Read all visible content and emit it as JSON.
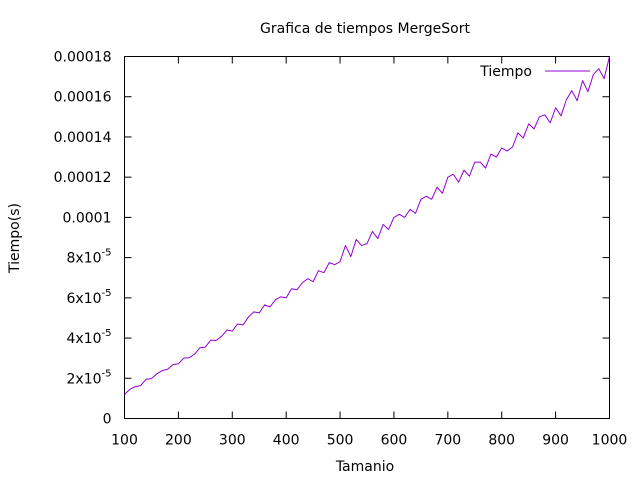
{
  "chart_data": {
    "type": "line",
    "title": "Grafica de tiempos MergeSort",
    "xlabel": "Tamanio",
    "ylabel": "Tiempo(s)",
    "xlim": [
      100,
      1000
    ],
    "ylim": [
      0,
      0.00018
    ],
    "grid": false,
    "legend_position": "top-right",
    "x_ticks": [
      {
        "value": 100,
        "label": "100"
      },
      {
        "value": 200,
        "label": "200"
      },
      {
        "value": 300,
        "label": "300"
      },
      {
        "value": 400,
        "label": "400"
      },
      {
        "value": 500,
        "label": "500"
      },
      {
        "value": 600,
        "label": "600"
      },
      {
        "value": 700,
        "label": "700"
      },
      {
        "value": 800,
        "label": "800"
      },
      {
        "value": 900,
        "label": "900"
      },
      {
        "value": 1000,
        "label": "1000"
      }
    ],
    "y_ticks": [
      {
        "value": 0,
        "label": "0"
      },
      {
        "value": 2e-05,
        "label": "2x10",
        "exp": "-5"
      },
      {
        "value": 4e-05,
        "label": "4x10",
        "exp": "-5"
      },
      {
        "value": 6e-05,
        "label": "6x10",
        "exp": "-5"
      },
      {
        "value": 8e-05,
        "label": "8x10",
        "exp": "-5"
      },
      {
        "value": 0.0001,
        "label": "0.0001"
      },
      {
        "value": 0.00012,
        "label": "0.00012"
      },
      {
        "value": 0.00014,
        "label": "0.00014"
      },
      {
        "value": 0.00016,
        "label": "0.00016"
      },
      {
        "value": 0.00018,
        "label": "0.00018"
      }
    ],
    "series": [
      {
        "name": "Tiempo",
        "color": "#9400d3",
        "x": [
          100,
          110,
          120,
          130,
          140,
          150,
          160,
          170,
          180,
          190,
          200,
          210,
          220,
          230,
          240,
          250,
          260,
          270,
          280,
          290,
          300,
          310,
          320,
          330,
          340,
          350,
          360,
          370,
          380,
          390,
          400,
          410,
          420,
          430,
          440,
          450,
          460,
          470,
          480,
          490,
          500,
          510,
          520,
          530,
          540,
          550,
          560,
          570,
          580,
          590,
          600,
          610,
          620,
          630,
          640,
          650,
          660,
          670,
          680,
          690,
          700,
          710,
          720,
          730,
          740,
          750,
          760,
          770,
          780,
          790,
          800,
          810,
          820,
          830,
          840,
          850,
          860,
          870,
          880,
          890,
          900,
          910,
          920,
          930,
          940,
          950,
          960,
          970,
          980,
          990,
          1000
        ],
        "y": [
          1.2e-05,
          1.45e-05,
          1.58e-05,
          1.64e-05,
          1.95e-05,
          1.98e-05,
          2.22e-05,
          2.38e-05,
          2.45e-05,
          2.68e-05,
          2.72e-05,
          3e-05,
          3.02e-05,
          3.2e-05,
          3.52e-05,
          3.55e-05,
          3.9e-05,
          3.88e-05,
          4.08e-05,
          4.4e-05,
          4.35e-05,
          4.7e-05,
          4.65e-05,
          5.05e-05,
          5.3e-05,
          5.25e-05,
          5.65e-05,
          5.55e-05,
          5.9e-05,
          6.05e-05,
          6e-05,
          6.45e-05,
          6.4e-05,
          6.75e-05,
          6.95e-05,
          6.8e-05,
          7.35e-05,
          7.25e-05,
          7.75e-05,
          7.65e-05,
          7.8e-05,
          8.6e-05,
          8.05e-05,
          8.9e-05,
          8.6e-05,
          8.7e-05,
          9.3e-05,
          8.95e-05,
          9.65e-05,
          9.4e-05,
          0.0001,
          0.0001015,
          0.0001,
          0.000104,
          0.000102,
          0.000109,
          0.0001105,
          0.000109,
          0.000115,
          0.000112,
          0.00012,
          0.0001215,
          0.0001175,
          0.0001235,
          0.0001205,
          0.0001275,
          0.0001275,
          0.0001245,
          0.0001315,
          0.00013,
          0.0001345,
          0.000133,
          0.000135,
          0.000142,
          0.0001395,
          0.0001465,
          0.000144,
          0.00015,
          0.000151,
          0.000147,
          0.0001545,
          0.0001505,
          0.0001585,
          0.000163,
          0.000158,
          0.000168,
          0.0001625,
          0.000171,
          0.000174,
          0.000169,
          0.00018
        ]
      }
    ]
  }
}
